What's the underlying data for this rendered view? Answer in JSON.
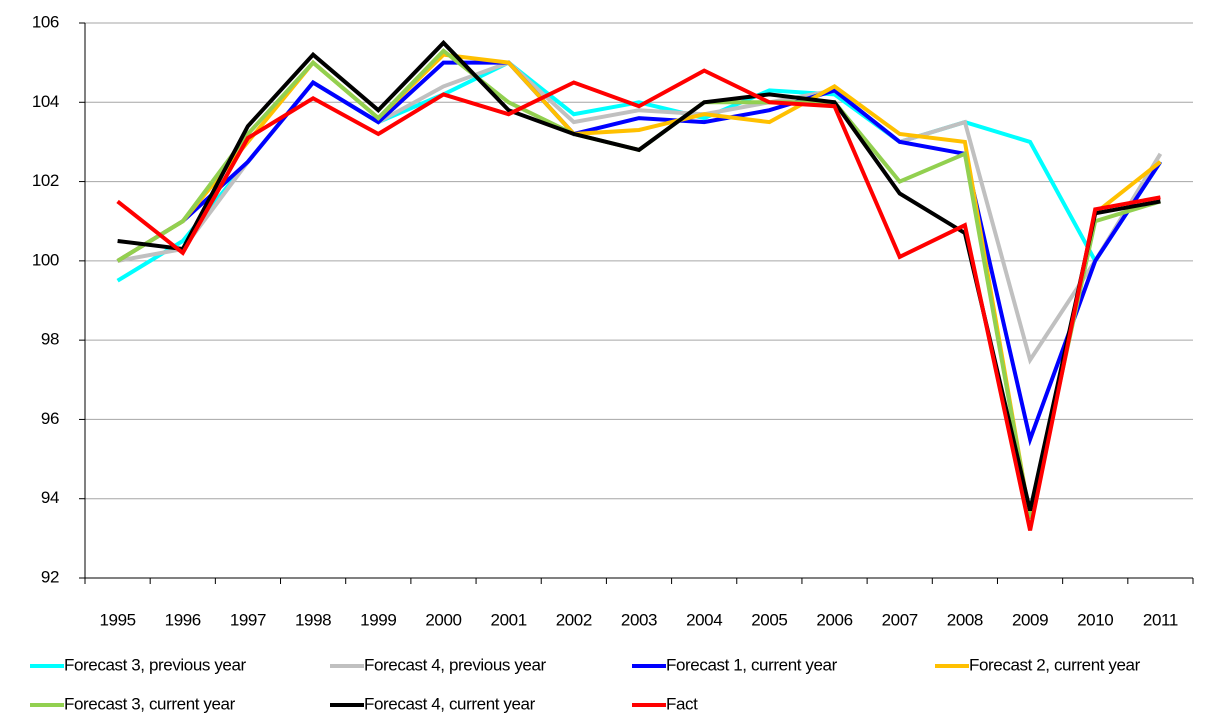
{
  "chart_data": {
    "type": "line",
    "categories": [
      "1995",
      "1996",
      "1997",
      "1998",
      "1999",
      "2000",
      "2001",
      "2002",
      "2003",
      "2004",
      "2005",
      "2006",
      "2007",
      "2008",
      "2009",
      "2010",
      "2011"
    ],
    "ylim": [
      92,
      106
    ],
    "yticks": [
      92,
      94,
      96,
      98,
      100,
      102,
      104,
      106
    ],
    "grid": true,
    "legend": "bottom",
    "series": [
      {
        "name": "Forecast 3, previous year",
        "color": "#00ffff",
        "values": [
          99.5,
          100.5,
          102.5,
          104.5,
          103.5,
          104.2,
          105.0,
          103.7,
          104.0,
          103.6,
          104.3,
          104.2,
          103.0,
          103.5,
          103.0,
          100.0,
          102.5
        ]
      },
      {
        "name": "Forecast 4, previous year",
        "color": "#c0c0c0",
        "values": [
          100.0,
          100.3,
          102.5,
          104.5,
          103.5,
          104.4,
          105.0,
          103.5,
          103.8,
          103.7,
          104.0,
          104.3,
          103.0,
          103.5,
          97.5,
          100.0,
          102.7
        ]
      },
      {
        "name": "Forecast 1, current year",
        "color": "#0000ff",
        "values": [
          100.0,
          101.0,
          102.5,
          104.5,
          103.5,
          105.0,
          105.0,
          103.2,
          103.6,
          103.5,
          103.8,
          104.3,
          103.0,
          102.7,
          95.5,
          100.0,
          102.5
        ]
      },
      {
        "name": "Forecast 2, current year",
        "color": "#ffc000",
        "values": [
          100.0,
          101.0,
          103.0,
          105.0,
          103.6,
          105.2,
          105.0,
          103.2,
          103.3,
          103.7,
          103.5,
          104.4,
          103.2,
          103.0,
          93.5,
          101.2,
          102.5
        ]
      },
      {
        "name": "Forecast 3, current year",
        "color": "#92d050",
        "values": [
          100.0,
          101.0,
          103.2,
          105.0,
          103.6,
          105.3,
          104.0,
          103.2,
          102.8,
          104.0,
          104.0,
          104.0,
          102.0,
          102.7,
          93.5,
          101.0,
          101.5
        ]
      },
      {
        "name": "Forecast 4, current year",
        "color": "#000000",
        "values": [
          100.5,
          100.3,
          103.4,
          105.2,
          103.8,
          105.5,
          103.8,
          103.2,
          102.8,
          104.0,
          104.2,
          104.0,
          101.7,
          100.7,
          93.7,
          101.2,
          101.5
        ]
      },
      {
        "name": "Fact",
        "color": "#ff0000",
        "values": [
          101.5,
          100.2,
          103.1,
          104.1,
          103.2,
          104.2,
          103.7,
          104.5,
          103.9,
          104.8,
          104.0,
          103.9,
          100.1,
          100.9,
          93.2,
          101.3,
          101.6
        ]
      }
    ]
  }
}
